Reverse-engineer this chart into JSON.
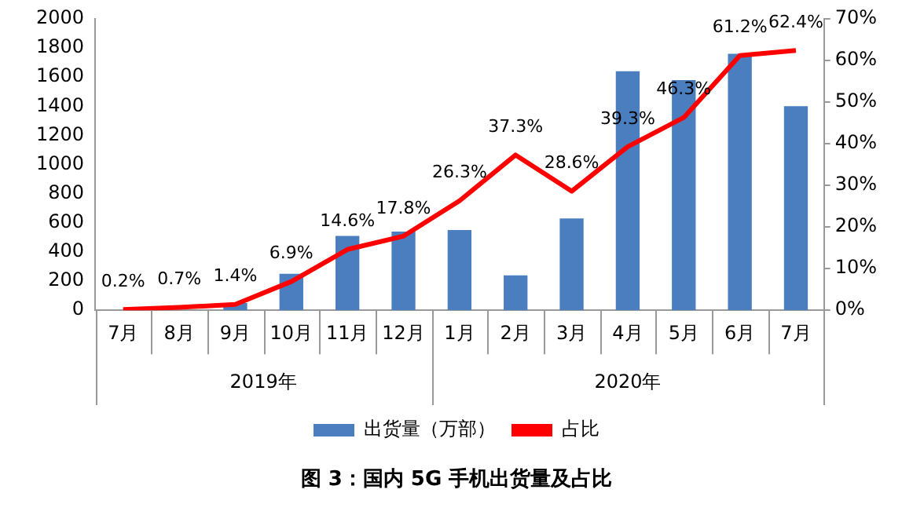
{
  "chart_data": {
    "type": "bar",
    "title": "图 3：国内 5G 手机出货量及占比",
    "categories": [
      "7月",
      "8月",
      "9月",
      "10月",
      "11月",
      "12月",
      "1月",
      "2月",
      "3月",
      "4月",
      "5月",
      "6月",
      "7月"
    ],
    "series": [
      {
        "name": "出货量（万部）",
        "color": "#4a7ebf",
        "values": [
          0,
          0,
          50,
          250,
          510,
          540,
          550,
          240,
          630,
          1640,
          1580,
          1760,
          1400
        ]
      },
      {
        "name": "占比",
        "type": "line",
        "axis": "y2",
        "color": "#ff0000",
        "values": [
          0.2,
          0.7,
          1.4,
          6.9,
          14.6,
          17.8,
          26.3,
          37.3,
          28.6,
          39.3,
          46.3,
          61.2,
          62.4
        ],
        "value_labels": [
          "0.2%",
          "0.7%",
          "1.4%",
          "6.9%",
          "14.6%",
          "17.8%",
          "26.3%",
          "37.3%",
          "28.6%",
          "39.3%",
          "46.3%",
          "61.2%",
          "62.4%"
        ]
      }
    ],
    "ylim": [
      0,
      2000
    ],
    "yticks": [
      0,
      200,
      400,
      600,
      800,
      1000,
      1200,
      1400,
      1600,
      1800,
      2000
    ],
    "y2lim": [
      0,
      70
    ],
    "y2ticks": [
      {
        "value": 0,
        "label": "0%"
      },
      {
        "value": 10,
        "label": "10%"
      },
      {
        "value": 20,
        "label": "20%"
      },
      {
        "value": 30,
        "label": "30%"
      },
      {
        "value": 40,
        "label": "40%"
      },
      {
        "value": 50,
        "label": "50%"
      },
      {
        "value": 60,
        "label": "60%"
      },
      {
        "value": 70,
        "label": "70%"
      }
    ],
    "annotations": [
      "2019年",
      "2020年"
    ],
    "grid": false,
    "legend": "bottom"
  }
}
